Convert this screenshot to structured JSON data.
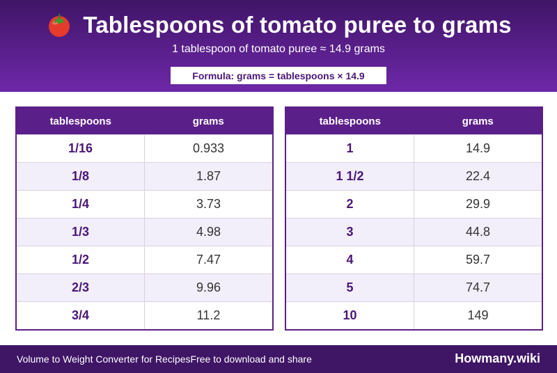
{
  "header": {
    "icon": "tomato-icon",
    "title": "Tablespoons of tomato puree to grams",
    "subtitle": "1 tablespoon of tomato puree ≈ 14.9 grams",
    "formula": "Formula: grams = tablespoons × 14.9"
  },
  "colors": {
    "header_dark": "#3f1566",
    "header_light": "#6d28a8",
    "accent": "#5b1f8a",
    "row_alt": "#f2eefa"
  },
  "tables": [
    {
      "headers": [
        "tablespoons",
        "grams"
      ],
      "rows": [
        [
          "1/16",
          "0.933"
        ],
        [
          "1/8",
          "1.87"
        ],
        [
          "1/4",
          "3.73"
        ],
        [
          "1/3",
          "4.98"
        ],
        [
          "1/2",
          "7.47"
        ],
        [
          "2/3",
          "9.96"
        ],
        [
          "3/4",
          "11.2"
        ]
      ]
    },
    {
      "headers": [
        "tablespoons",
        "grams"
      ],
      "rows": [
        [
          "1",
          "14.9"
        ],
        [
          "1 1/2",
          "22.4"
        ],
        [
          "2",
          "29.9"
        ],
        [
          "3",
          "44.8"
        ],
        [
          "4",
          "59.7"
        ],
        [
          "5",
          "74.7"
        ],
        [
          "10",
          "149"
        ]
      ]
    }
  ],
  "footer": {
    "left_text": "Volume to Weight Converter for Recipes",
    "middle_text": "Free to download and share",
    "brand": "Howmany.wiki"
  }
}
